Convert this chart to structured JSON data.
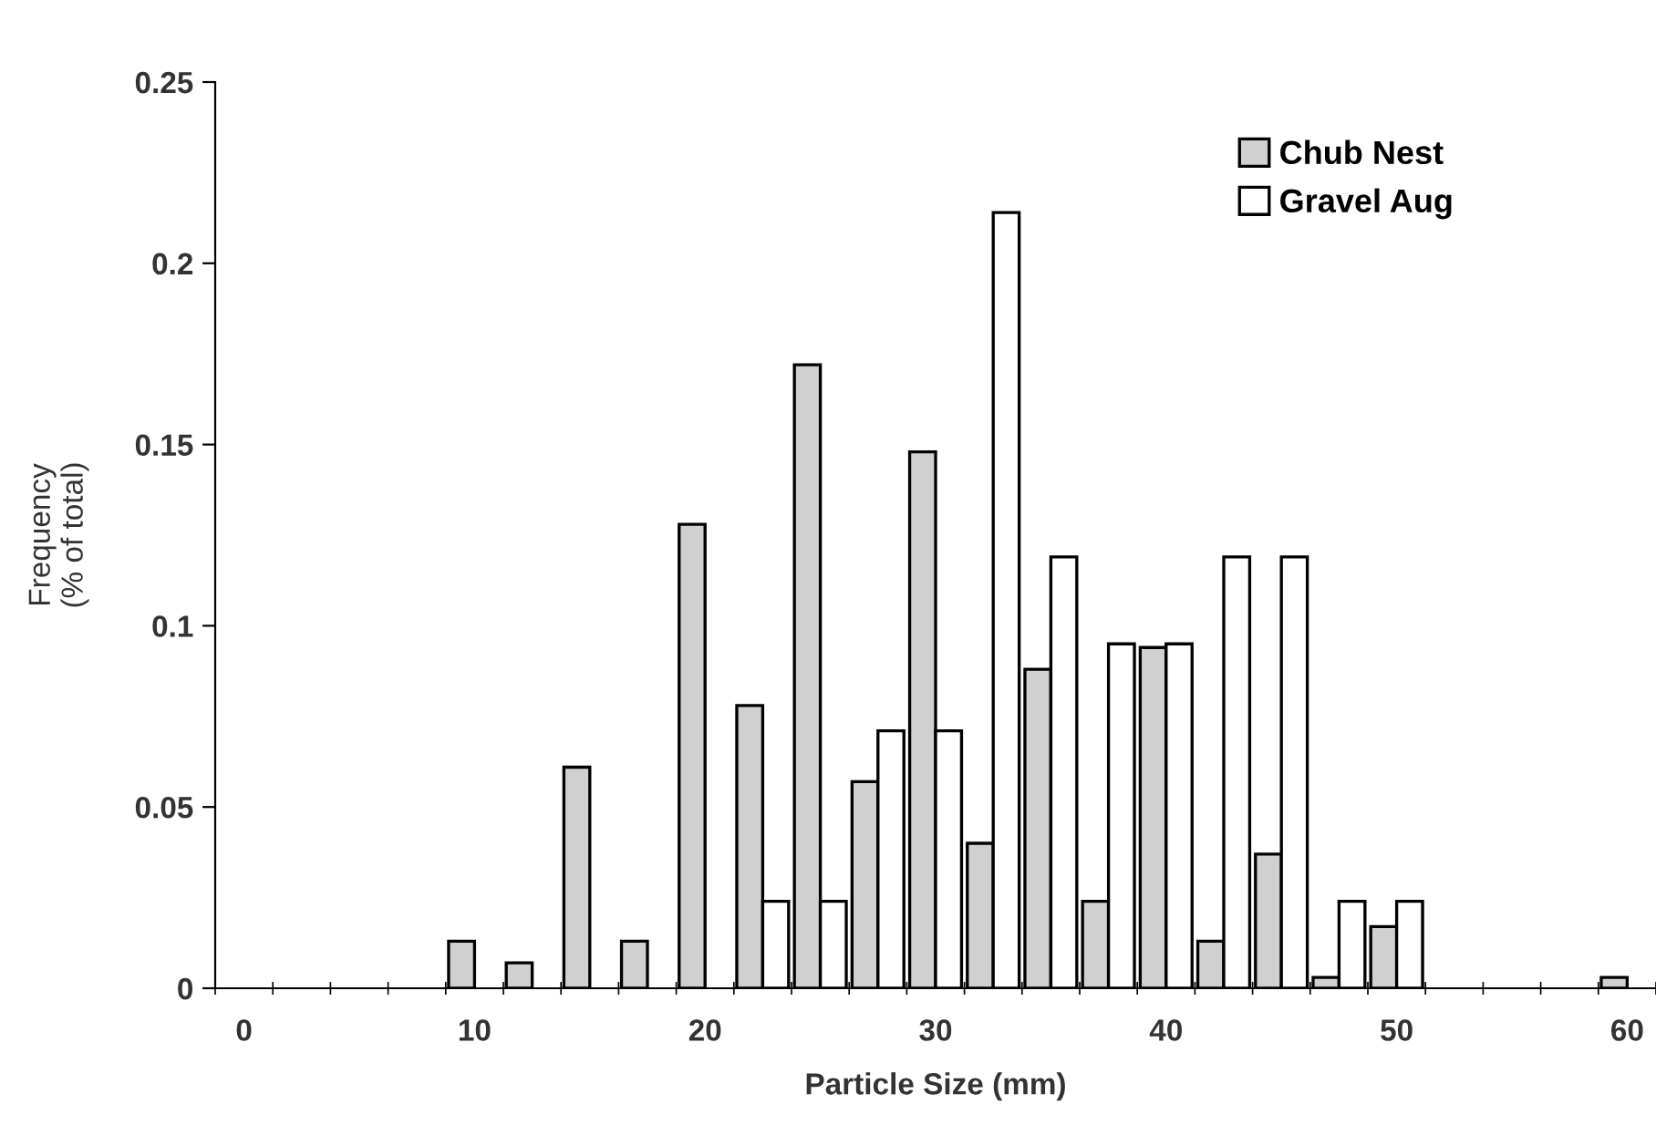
{
  "chart_data": {
    "type": "bar",
    "xlabel": "Particle Size (mm)",
    "ylabel": "Frequency\n(% of total)",
    "categories": [
      "0",
      null,
      null,
      null,
      "10",
      null,
      null,
      null,
      "20",
      null,
      null,
      null,
      "30",
      null,
      null,
      null,
      "40",
      null,
      null,
      null,
      "50",
      null,
      null,
      null,
      "60"
    ],
    "series": [
      {
        "name": "Chub Nest",
        "color": "#d0d0d0",
        "values": [
          0,
          0,
          0,
          0,
          0.013,
          0.007,
          0.061,
          0.013,
          0.128,
          0.078,
          0.172,
          0.057,
          0.148,
          0.04,
          0.088,
          0.024,
          0.094,
          0.013,
          0.037,
          0.003,
          0.017,
          0,
          0,
          0,
          0.003
        ]
      },
      {
        "name": "Gravel Aug",
        "color": "#ffffff",
        "values": [
          0,
          0,
          0,
          0,
          0,
          0,
          0,
          0,
          0,
          0.024,
          0.024,
          0.071,
          0.071,
          0.214,
          0.119,
          0.095,
          0.095,
          0.119,
          0.119,
          0.024,
          0.024,
          0,
          0,
          0,
          0
        ]
      }
    ],
    "ylim": [
      0,
      0.25
    ],
    "yticks": [
      0,
      0.05,
      0.1,
      0.15,
      0.2,
      0.25
    ],
    "grid": false,
    "legend": "top right"
  }
}
